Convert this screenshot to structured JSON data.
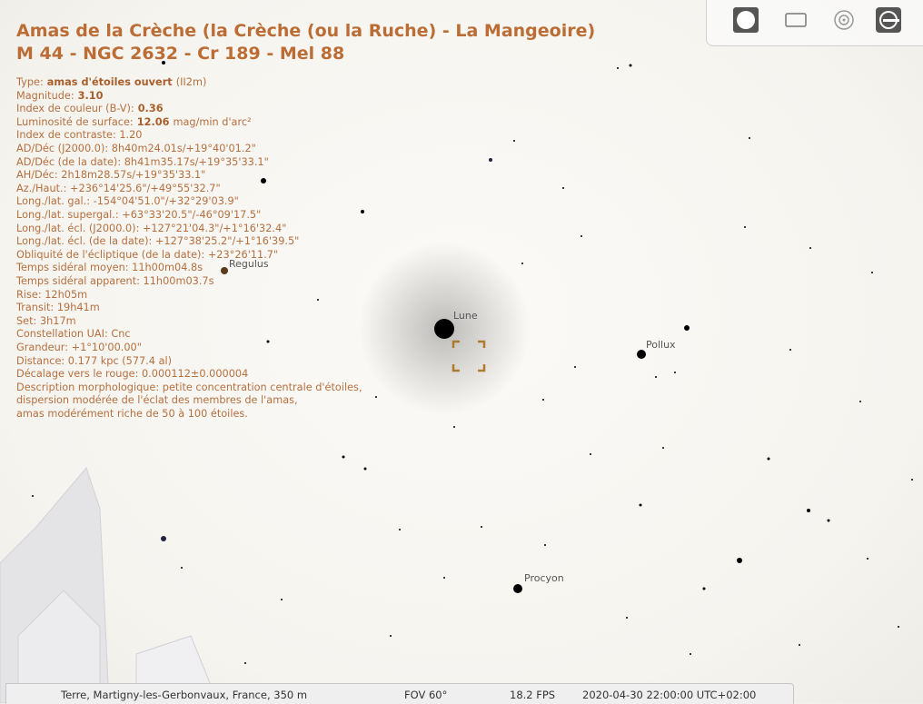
{
  "title": {
    "line1": "Amas de la Crèche (la Crèche (ou la Ruche) - La Mangeoire)",
    "line2": "M 44 - NGC 2632 - Cr 189 - Mel 88"
  },
  "info": [
    {
      "label": "Type:",
      "value": "amas d'étoiles ouvert",
      "suffix": "(II2m)"
    },
    {
      "label": "Magnitude:",
      "value": "3.10"
    },
    {
      "label": "Index de couleur (B-V):",
      "value": "0.36"
    },
    {
      "label": "Luminosité de surface:",
      "value": "12.06",
      "suffix": "mag/min d'arc²"
    },
    "Index de contraste: 1.20",
    "AD/Déc (J2000.0): 8h40m24.01s/+19°40'01.2\"",
    "AD/Déc (de la date): 8h41m35.17s/+19°35'33.1\"",
    "AH/Déc: 2h18m28.57s/+19°35'33.1\"",
    "Az./Haut.: +236°14'25.6\"/+49°55'32.7\"",
    "Long./lat. gal.: -154°04'51.0\"/+32°29'03.9\"",
    "Long./lat. supergal.: +63°33'20.5\"/-46°09'17.5\"",
    "Long./lat. écl. (J2000.0): +127°21'04.3\"/+1°16'32.4\"",
    "Long./lat. écl. (de la date): +127°38'25.2\"/+1°16'39.5\"",
    "Obliquité de l'écliptique (de la date): +23°26'11.7\"",
    "Temps sidéral moyen: 11h00m04.8s",
    "Temps sidéral apparent: 11h00m03.7s",
    "Rise: 12h05m",
    "Transit: 19h41m",
    "Set: 3h17m",
    "Constellation UAI: Cnc",
    "Grandeur: +1°10'00.00\"",
    "Distance: 0.177 kpc (577.4 al)",
    "Décalage vers le rouge: 0.000112±0.000004",
    "Description morphologique: petite concentration centrale d'étoiles,",
    "dispersion modérée de l'éclat des membres de l'amas,",
    "amas modérément riche de 50 à 100 étoiles."
  ],
  "sky_labels": {
    "moon": "Lune",
    "regulus": "Regulus",
    "pollux": "Pollux",
    "procyon": "Procyon"
  },
  "status_bar": {
    "location": "Terre, Martigny-les-Gerbonvaux, France, 350 m",
    "fov": "FOV 60°",
    "fps": "18.2 FPS",
    "datetime": "2020-04-30 22:00:00 UTC+02:00"
  }
}
